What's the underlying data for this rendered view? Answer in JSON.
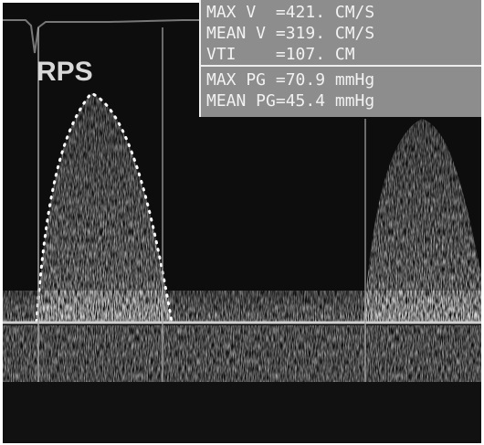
{
  "label": "RPS",
  "measurements": {
    "velocity": [
      "MAX V  =421. CM/S",
      "MEAN V =319. CM/S",
      "VTI    =107. CM"
    ],
    "gradient": [
      "MAX PG =70.9 mmHg",
      "MEAN PG=45.4 mmHg"
    ]
  }
}
